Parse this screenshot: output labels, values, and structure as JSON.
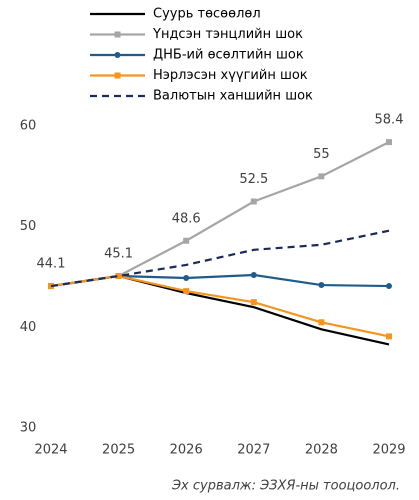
{
  "chart_data": {
    "type": "line",
    "x": [
      2024,
      2025,
      2026,
      2027,
      2028,
      2029
    ],
    "xlim": [
      2024,
      2029
    ],
    "xticks": [
      2024,
      2025,
      2026,
      2027,
      2028,
      2029
    ],
    "ylim": [
      30,
      60
    ],
    "yticks": [
      30,
      40,
      50,
      60
    ],
    "grid": false,
    "series": [
      {
        "name": "Суурь төсөөлөл",
        "color": "#000000",
        "values": [
          44.1,
          45.1,
          43.4,
          42.0,
          39.8,
          38.3
        ]
      },
      {
        "name": "Үндсэн тэнцлийн шок",
        "color": "#a6a6a6",
        "marker": "square",
        "data_labels": true,
        "values": [
          44.1,
          45.1,
          48.6,
          52.5,
          55.0,
          58.4
        ]
      },
      {
        "name": "ДНБ-ий өсөлтийн шок",
        "color": "#1f5c8b",
        "marker": "circle",
        "values": [
          44.1,
          45.1,
          44.9,
          45.2,
          44.2,
          44.1
        ]
      },
      {
        "name": "Нэрлэсэн хүүгийн шок",
        "color": "#f7941d",
        "marker": "square",
        "values": [
          44.1,
          45.1,
          43.6,
          42.5,
          40.5,
          39.1
        ]
      },
      {
        "name": "Валютын ханшийн шок",
        "color": "#1a2a5a",
        "dash": true,
        "values": [
          44.1,
          45.1,
          46.2,
          47.7,
          48.2,
          49.6
        ]
      }
    ],
    "source": "Эх сурвалж: ЭЗХЯ-ны тооцоолол."
  }
}
